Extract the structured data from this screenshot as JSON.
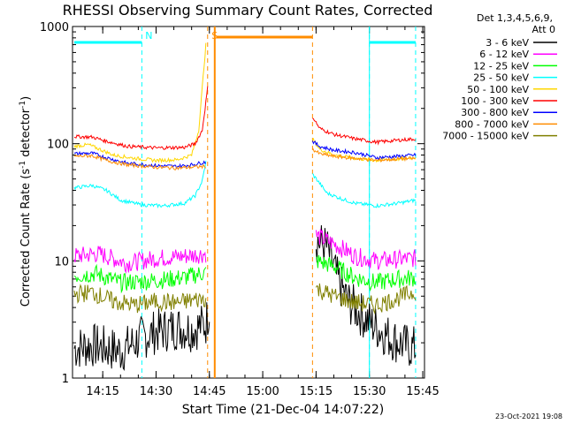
{
  "chart_data": {
    "type": "line",
    "title": "RHESSI Observing Summary Count Rates, Corrected",
    "xlabel": "Start Time (21-Dec-04 14:07:22)",
    "ylabel": "Corrected Count Rate (s⁻¹ detector⁻¹)",
    "ylabel_parts": {
      "main": "Corrected Count Rate (s",
      "sup1": "-1",
      "mid": " detector",
      "sup2": "-1",
      "end": ")"
    },
    "yscale": "log",
    "ylim": [
      1,
      1000
    ],
    "y_ticks": [
      {
        "value": 1,
        "label": "1"
      },
      {
        "value": 10,
        "label": "10"
      },
      {
        "value": 100,
        "label": "100"
      },
      {
        "value": 1000,
        "label": "1000"
      }
    ],
    "xlim_min": [
      6.5,
      103
    ],
    "x_ticks": [
      {
        "min": 15,
        "label": "14:15"
      },
      {
        "min": 30,
        "label": "14:30"
      },
      {
        "min": 45,
        "label": "14:45"
      },
      {
        "min": 60,
        "label": "15:00"
      },
      {
        "min": 75,
        "label": "15:15"
      },
      {
        "min": 90,
        "label": "15:30"
      },
      {
        "min": 105,
        "label": "15:45"
      }
    ],
    "legend_header": [
      "Det 1,3,4,5,6,9,",
      "Att 0"
    ],
    "legend_position": "right",
    "series": [
      {
        "name": "3 - 6 keV",
        "color": "#000000",
        "points": [
          [
            7,
            1.8
          ],
          [
            12,
            1.9
          ],
          [
            20,
            1.7
          ],
          [
            26,
            2.2
          ],
          [
            30,
            2.5
          ],
          [
            36,
            2.7
          ],
          [
            40,
            2.6
          ],
          [
            44,
            2.9
          ],
          [
            45,
            4
          ]
        ],
        "points2": [
          [
            75,
            15
          ],
          [
            78,
            13
          ],
          [
            81,
            7
          ],
          [
            84,
            4.5
          ],
          [
            90,
            3
          ],
          [
            96,
            2.2
          ],
          [
            100,
            1.9
          ],
          [
            103,
            1.8
          ]
        ]
      },
      {
        "name": "6 - 12 keV",
        "color": "#ff00ff",
        "points": [
          [
            7,
            11
          ],
          [
            14,
            11.5
          ],
          [
            22,
            9.5
          ],
          [
            30,
            10.5
          ],
          [
            38,
            11
          ],
          [
            44,
            11.5
          ]
        ],
        "points2": [
          [
            75,
            16.5
          ],
          [
            80,
            14
          ],
          [
            86,
            11
          ],
          [
            92,
            10
          ],
          [
            98,
            10.3
          ],
          [
            103,
            10.5
          ]
        ]
      },
      {
        "name": "12 - 25 keV",
        "color": "#00ff00",
        "points": [
          [
            7,
            7.5
          ],
          [
            13,
            7.8
          ],
          [
            20,
            6.5
          ],
          [
            30,
            6.8
          ],
          [
            38,
            7.2
          ],
          [
            44,
            8
          ]
        ],
        "points2": [
          [
            75,
            10
          ],
          [
            80,
            9
          ],
          [
            86,
            7.2
          ],
          [
            92,
            6.5
          ],
          [
            98,
            7
          ],
          [
            103,
            7.2
          ]
        ]
      },
      {
        "name": "25 - 50 keV",
        "color": "#00ffff",
        "points": [
          [
            7,
            42
          ],
          [
            12,
            44
          ],
          [
            16,
            40
          ],
          [
            20,
            33
          ],
          [
            26,
            30
          ],
          [
            32,
            29.5
          ],
          [
            38,
            31
          ],
          [
            41,
            36
          ],
          [
            43,
            48
          ],
          [
            44,
            70
          ]
        ],
        "points2": [
          [
            74,
            55
          ],
          [
            76,
            46
          ],
          [
            78,
            38
          ],
          [
            82,
            34
          ],
          [
            86,
            31
          ],
          [
            92,
            29.5
          ],
          [
            98,
            31
          ],
          [
            103,
            33
          ]
        ]
      },
      {
        "name": "50 - 100 keV",
        "color": "#ffd700",
        "points": [
          [
            7,
            95
          ],
          [
            11,
            98
          ],
          [
            14,
            90
          ],
          [
            18,
            80
          ],
          [
            24,
            75
          ],
          [
            30,
            72
          ],
          [
            36,
            73
          ],
          [
            40,
            80
          ],
          [
            42,
            130
          ],
          [
            44,
            700
          ]
        ],
        "points2": [
          [
            74,
            110
          ],
          [
            76,
            90
          ],
          [
            80,
            80
          ],
          [
            86,
            75
          ],
          [
            92,
            72
          ],
          [
            98,
            74
          ],
          [
            103,
            76
          ]
        ]
      },
      {
        "name": "100 - 300 keV",
        "color": "#ff0000",
        "points": [
          [
            7,
            115
          ],
          [
            12,
            114
          ],
          [
            16,
            105
          ],
          [
            22,
            95
          ],
          [
            30,
            92
          ],
          [
            38,
            93
          ],
          [
            41,
            100
          ],
          [
            43,
            130
          ],
          [
            44.5,
            300
          ]
        ],
        "points2": [
          [
            74,
            170
          ],
          [
            76,
            135
          ],
          [
            80,
            120
          ],
          [
            86,
            110
          ],
          [
            92,
            103
          ],
          [
            98,
            107
          ],
          [
            103,
            110
          ]
        ]
      },
      {
        "name": "300 - 800 keV",
        "color": "#0000ff",
        "points": [
          [
            7,
            82
          ],
          [
            12,
            83
          ],
          [
            16,
            76
          ],
          [
            22,
            68
          ],
          [
            30,
            65
          ],
          [
            36,
            64
          ],
          [
            40,
            66
          ],
          [
            44,
            70
          ]
        ],
        "points2": [
          [
            74,
            105
          ],
          [
            76,
            95
          ],
          [
            80,
            88
          ],
          [
            86,
            84
          ],
          [
            92,
            76
          ],
          [
            98,
            78
          ],
          [
            103,
            80
          ]
        ]
      },
      {
        "name": "800 - 7000 keV",
        "color": "#ff8c00",
        "points": [
          [
            7,
            78
          ],
          [
            12,
            79
          ],
          [
            16,
            72
          ],
          [
            22,
            66
          ],
          [
            30,
            63
          ],
          [
            36,
            62
          ],
          [
            40,
            63
          ],
          [
            44,
            64
          ]
        ],
        "points2": [
          [
            74,
            90
          ],
          [
            76,
            82
          ],
          [
            80,
            78
          ],
          [
            86,
            75
          ],
          [
            92,
            72
          ],
          [
            98,
            74
          ],
          [
            103,
            75
          ]
        ]
      },
      {
        "name": "7000 - 15000 keV",
        "color": "#808000",
        "points": [
          [
            7,
            5.2
          ],
          [
            12,
            5.4
          ],
          [
            18,
            4.5
          ],
          [
            24,
            4.2
          ],
          [
            30,
            4.5
          ],
          [
            36,
            4.4
          ],
          [
            44,
            4.8
          ]
        ],
        "points2": [
          [
            75,
            5.8
          ],
          [
            80,
            5
          ],
          [
            86,
            4.4
          ],
          [
            92,
            4.2
          ],
          [
            98,
            4.8
          ],
          [
            103,
            5.5
          ]
        ]
      }
    ],
    "annotations": [
      {
        "label": "N",
        "color": "#00ffff",
        "min": 26
      },
      {
        "label": "S",
        "color": "#ff8c00",
        "min": 44.5
      }
    ],
    "footer_date": "23-Oct-2021 19:08"
  }
}
